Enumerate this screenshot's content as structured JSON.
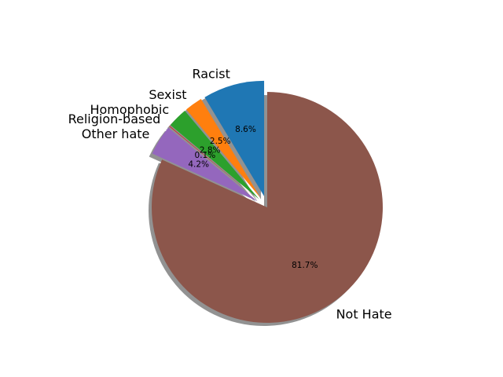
{
  "chart_data": {
    "type": "pie",
    "title": "",
    "categories": [
      "Racist",
      "Sexist",
      "Homophobic",
      "Religion-based",
      "Other hate",
      "Not Hate"
    ],
    "values": [
      8.6,
      2.5,
      2.8,
      0.1,
      4.2,
      81.7
    ],
    "labels": [
      "8.6%",
      "2.5%",
      "2.8%",
      "0.1%",
      "4.2%",
      "81.7%"
    ],
    "colors": [
      "#1f77b4",
      "#ff7f0e",
      "#2ca02c",
      "#d62728",
      "#9467bd",
      "#8c564b"
    ],
    "exploded": [
      true,
      true,
      true,
      true,
      true,
      false
    ],
    "shadow": true,
    "start_angle_deg": 90,
    "direction": "counterclockwise",
    "legend": "none"
  }
}
